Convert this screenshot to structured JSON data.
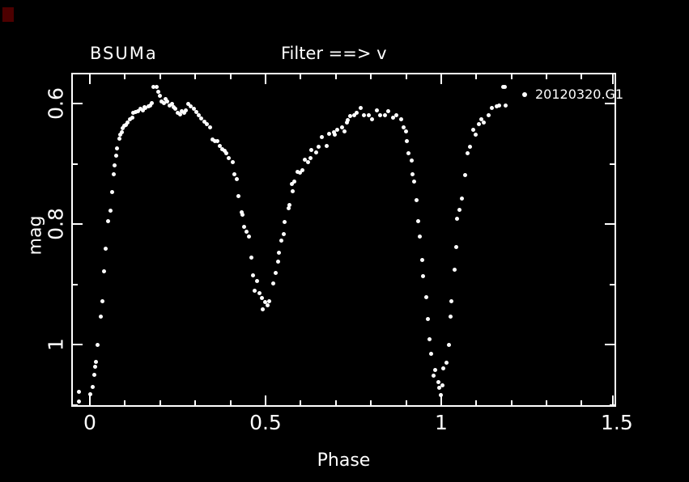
{
  "window": {
    "background": "#000000",
    "foreground": "#ffffff"
  },
  "artifacts": {
    "corner_square_color": "#4d0000"
  },
  "chart_data": {
    "type": "scatter",
    "title_left": "BSUMa",
    "title_center": "Filter ==> v",
    "legend": {
      "label": "20120320.G1",
      "marker": "dot",
      "marker_color": "#ffffff",
      "position": "top-right"
    },
    "point_color": "#ffffff",
    "grid": false,
    "xlim": [
      -0.053,
      1.498
    ],
    "ylim": [
      1.103,
      0.549
    ],
    "x_axis": {
      "label": "Phase",
      "major_ticks": [
        {
          "v": 0,
          "label": "0"
        },
        {
          "v": 0.5,
          "label": "0.5"
        },
        {
          "v": 1,
          "label": "1"
        },
        {
          "v": 1.5,
          "label": "1.5"
        }
      ],
      "minor_ticks": [
        0.1,
        0.2,
        0.3,
        0.4,
        0.6,
        0.7,
        0.8,
        0.9,
        1.1,
        1.2,
        1.3,
        1.4
      ]
    },
    "y_axis": {
      "label": "mag",
      "major_ticks": [
        {
          "v": 0.6,
          "label": "0.6"
        },
        {
          "v": 0.8,
          "label": "0.8"
        },
        {
          "v": 1.0,
          "label": "1"
        }
      ],
      "minor_ticks": [
        0.7,
        0.9,
        1.1
      ]
    },
    "series": [
      {
        "name": "20120320.G1",
        "points": [
          [
            -0.032,
            1.078
          ],
          [
            -0.032,
            1.094
          ],
          [
            0.002,
            1.082
          ],
          [
            0.007,
            1.07
          ],
          [
            0.012,
            1.05
          ],
          [
            0.014,
            1.036
          ],
          [
            0.018,
            1.028
          ],
          [
            0.023,
            1.001
          ],
          [
            0.03,
            0.953
          ],
          [
            0.035,
            0.928
          ],
          [
            0.041,
            0.878
          ],
          [
            0.044,
            0.841
          ],
          [
            0.051,
            0.795
          ],
          [
            0.058,
            0.778
          ],
          [
            0.063,
            0.747
          ],
          [
            0.067,
            0.717
          ],
          [
            0.07,
            0.703
          ],
          [
            0.074,
            0.686
          ],
          [
            0.078,
            0.675
          ],
          [
            0.083,
            0.658
          ],
          [
            0.086,
            0.652
          ],
          [
            0.09,
            0.647
          ],
          [
            0.094,
            0.641
          ],
          [
            0.099,
            0.637
          ],
          [
            0.103,
            0.635
          ],
          [
            0.108,
            0.631
          ],
          [
            0.113,
            0.626
          ],
          [
            0.12,
            0.623
          ],
          [
            0.124,
            0.616
          ],
          [
            0.13,
            0.614
          ],
          [
            0.136,
            0.613
          ],
          [
            0.143,
            0.609
          ],
          [
            0.15,
            0.611
          ],
          [
            0.155,
            0.606
          ],
          [
            0.159,
            0.607
          ],
          [
            0.166,
            0.604
          ],
          [
            0.171,
            0.603
          ],
          [
            0.177,
            0.599
          ],
          [
            0.182,
            0.572
          ],
          [
            0.189,
            0.573
          ],
          [
            0.195,
            0.58
          ],
          [
            0.2,
            0.587
          ],
          [
            0.205,
            0.596
          ],
          [
            0.21,
            0.599
          ],
          [
            0.216,
            0.593
          ],
          [
            0.221,
            0.596
          ],
          [
            0.227,
            0.603
          ],
          [
            0.233,
            0.6
          ],
          [
            0.238,
            0.606
          ],
          [
            0.244,
            0.609
          ],
          [
            0.25,
            0.615
          ],
          [
            0.256,
            0.618
          ],
          [
            0.262,
            0.613
          ],
          [
            0.268,
            0.616
          ],
          [
            0.274,
            0.611
          ],
          [
            0.281,
            0.601
          ],
          [
            0.288,
            0.605
          ],
          [
            0.297,
            0.609
          ],
          [
            0.304,
            0.614
          ],
          [
            0.31,
            0.619
          ],
          [
            0.318,
            0.625
          ],
          [
            0.325,
            0.63
          ],
          [
            0.332,
            0.634
          ],
          [
            0.343,
            0.64
          ],
          [
            0.35,
            0.659
          ],
          [
            0.357,
            0.662
          ],
          [
            0.362,
            0.663
          ],
          [
            0.371,
            0.67
          ],
          [
            0.377,
            0.676
          ],
          [
            0.383,
            0.679
          ],
          [
            0.389,
            0.683
          ],
          [
            0.396,
            0.69
          ],
          [
            0.406,
            0.697
          ],
          [
            0.412,
            0.717
          ],
          [
            0.419,
            0.726
          ],
          [
            0.424,
            0.754
          ],
          [
            0.431,
            0.78
          ],
          [
            0.435,
            0.784
          ],
          [
            0.44,
            0.804
          ],
          [
            0.447,
            0.813
          ],
          [
            0.452,
            0.821
          ],
          [
            0.459,
            0.855
          ],
          [
            0.465,
            0.885
          ],
          [
            0.47,
            0.911
          ],
          [
            0.475,
            0.894
          ],
          [
            0.482,
            0.914
          ],
          [
            0.49,
            0.922
          ],
          [
            0.493,
            0.942
          ],
          [
            0.5,
            0.929
          ],
          [
            0.505,
            0.934
          ],
          [
            0.51,
            0.928
          ],
          [
            0.521,
            0.898
          ],
          [
            0.528,
            0.881
          ],
          [
            0.535,
            0.862
          ],
          [
            0.539,
            0.847
          ],
          [
            0.544,
            0.828
          ],
          [
            0.551,
            0.817
          ],
          [
            0.555,
            0.797
          ],
          [
            0.565,
            0.774
          ],
          [
            0.567,
            0.768
          ],
          [
            0.574,
            0.734
          ],
          [
            0.578,
            0.746
          ],
          [
            0.581,
            0.73
          ],
          [
            0.59,
            0.713
          ],
          [
            0.597,
            0.714
          ],
          [
            0.604,
            0.71
          ],
          [
            0.613,
            0.693
          ],
          [
            0.62,
            0.697
          ],
          [
            0.627,
            0.69
          ],
          [
            0.631,
            0.677
          ],
          [
            0.643,
            0.681
          ],
          [
            0.65,
            0.672
          ],
          [
            0.661,
            0.656
          ],
          [
            0.673,
            0.67
          ],
          [
            0.682,
            0.65
          ],
          [
            0.694,
            0.647
          ],
          [
            0.696,
            0.652
          ],
          [
            0.705,
            0.643
          ],
          [
            0.717,
            0.64
          ],
          [
            0.724,
            0.646
          ],
          [
            0.731,
            0.632
          ],
          [
            0.735,
            0.627
          ],
          [
            0.742,
            0.621
          ],
          [
            0.753,
            0.619
          ],
          [
            0.76,
            0.615
          ],
          [
            0.77,
            0.607
          ],
          [
            0.781,
            0.62
          ],
          [
            0.793,
            0.619
          ],
          [
            0.804,
            0.626
          ],
          [
            0.816,
            0.612
          ],
          [
            0.827,
            0.62
          ],
          [
            0.839,
            0.619
          ],
          [
            0.85,
            0.613
          ],
          [
            0.862,
            0.623
          ],
          [
            0.873,
            0.62
          ],
          [
            0.885,
            0.626
          ],
          [
            0.892,
            0.639
          ],
          [
            0.901,
            0.646
          ],
          [
            0.903,
            0.663
          ],
          [
            0.908,
            0.683
          ],
          [
            0.915,
            0.694
          ],
          [
            0.919,
            0.717
          ],
          [
            0.924,
            0.73
          ],
          [
            0.931,
            0.76
          ],
          [
            0.935,
            0.795
          ],
          [
            0.938,
            0.82
          ],
          [
            0.947,
            0.86
          ],
          [
            0.949,
            0.887
          ],
          [
            0.958,
            0.921
          ],
          [
            0.963,
            0.958
          ],
          [
            0.966,
            0.991
          ],
          [
            0.972,
            1.015
          ],
          [
            0.979,
            1.051
          ],
          [
            0.982,
            1.042
          ],
          [
            0.993,
            1.062
          ],
          [
            0.995,
            1.072
          ],
          [
            1.0,
            1.083
          ],
          [
            1.004,
            1.068
          ],
          [
            1.007,
            1.039
          ],
          [
            1.016,
            1.03
          ],
          [
            1.021,
            1.001
          ],
          [
            1.027,
            0.954
          ],
          [
            1.03,
            0.928
          ],
          [
            1.038,
            0.875
          ],
          [
            1.042,
            0.838
          ],
          [
            1.046,
            0.791
          ],
          [
            1.051,
            0.777
          ],
          [
            1.06,
            0.757
          ],
          [
            1.069,
            0.719
          ],
          [
            1.074,
            0.683
          ],
          [
            1.081,
            0.672
          ],
          [
            1.092,
            0.644
          ],
          [
            1.097,
            0.652
          ],
          [
            1.108,
            0.634
          ],
          [
            1.115,
            0.626
          ],
          [
            1.122,
            0.632
          ],
          [
            1.134,
            0.62
          ],
          [
            1.145,
            0.607
          ],
          [
            1.157,
            0.605
          ],
          [
            1.166,
            0.603
          ],
          [
            1.177,
            0.572
          ],
          [
            1.18,
            0.573
          ],
          [
            1.184,
            0.603
          ]
        ]
      }
    ]
  }
}
